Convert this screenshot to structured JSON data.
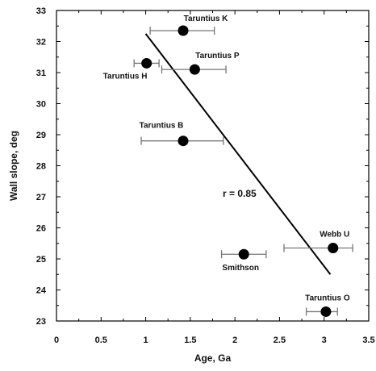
{
  "chart_data": {
    "type": "scatter",
    "title": "",
    "xlabel": "Age, Ga",
    "ylabel": "Wall slope, deg",
    "xlim": [
      0,
      3.5
    ],
    "ylim": [
      23,
      33
    ],
    "x_ticks": [
      "0",
      "0.5",
      "1",
      "1.5",
      "2",
      "2.5",
      "3",
      "3.5"
    ],
    "y_ticks": [
      "23",
      "24",
      "25",
      "26",
      "27",
      "28",
      "29",
      "30",
      "31",
      "32",
      "33"
    ],
    "grid": false,
    "legend": "none",
    "points": [
      {
        "label": "Taruntius K",
        "x": 1.42,
        "y": 32.35,
        "xerr_low": 1.05,
        "xerr_high": 1.77
      },
      {
        "label": "Taruntius H",
        "x": 1.01,
        "y": 31.3,
        "xerr_low": 0.87,
        "xerr_high": 1.15
      },
      {
        "label": "Taruntius P",
        "x": 1.55,
        "y": 31.1,
        "xerr_low": 1.18,
        "xerr_high": 1.9
      },
      {
        "label": "Taruntius B",
        "x": 1.42,
        "y": 28.8,
        "xerr_low": 0.95,
        "xerr_high": 1.87
      },
      {
        "label": "Webb U",
        "x": 3.1,
        "y": 25.35,
        "xerr_low": 2.55,
        "xerr_high": 3.32
      },
      {
        "label": "Smithson",
        "x": 2.1,
        "y": 25.15,
        "xerr_low": 1.85,
        "xerr_high": 2.35
      },
      {
        "label": "Taruntius O",
        "x": 3.02,
        "y": 23.3,
        "xerr_low": 2.8,
        "xerr_high": 3.15
      }
    ],
    "fit_line": {
      "x": [
        1.0,
        3.07
      ],
      "y": [
        32.25,
        24.5
      ]
    },
    "annotation": "r = 0.85",
    "colors": {
      "marker": "#000000",
      "error_bar": "#777777",
      "line": "#000000",
      "axis": "#000000"
    }
  }
}
